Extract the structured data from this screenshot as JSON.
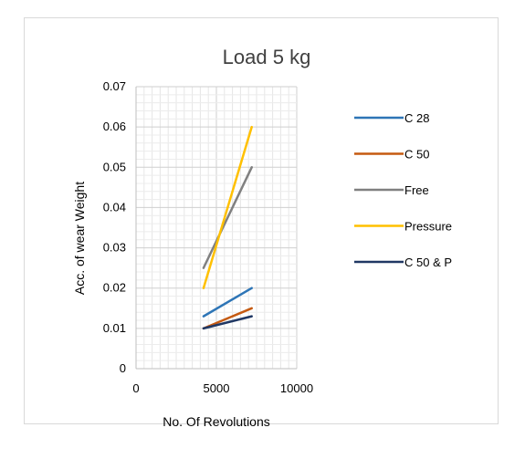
{
  "chart_data": {
    "type": "line",
    "title": "Load 5 kg",
    "xlabel": "No. Of Revolutions",
    "ylabel": "Acc. of  wear Weight",
    "xlim": [
      0,
      10000
    ],
    "ylim": [
      0,
      0.07
    ],
    "xticks": [
      0,
      5000,
      10000
    ],
    "xtick_labels": [
      "0",
      "5000",
      "10000"
    ],
    "yticks": [
      0,
      0.01,
      0.02,
      0.03,
      0.04,
      0.05,
      0.06,
      0.07
    ],
    "ytick_labels": [
      "0",
      "0.01",
      "0.02",
      "0.03",
      "0.04",
      "0.05",
      "0.06",
      "0.07"
    ],
    "grid": true,
    "legend_position": "right",
    "series": [
      {
        "name": "C 28",
        "color": "#2e75b6",
        "x": [
          4200,
          7200
        ],
        "y": [
          0.013,
          0.02
        ]
      },
      {
        "name": "C 50",
        "color": "#c55a11",
        "x": [
          4200,
          7200
        ],
        "y": [
          0.01,
          0.015
        ]
      },
      {
        "name": "Free",
        "color": "#808080",
        "x": [
          4200,
          7200
        ],
        "y": [
          0.025,
          0.05
        ]
      },
      {
        "name": "Pressure",
        "color": "#ffc000",
        "x": [
          4200,
          7200
        ],
        "y": [
          0.02,
          0.06
        ]
      },
      {
        "name": "C 50 & P",
        "color": "#203864",
        "x": [
          4200,
          7200
        ],
        "y": [
          0.01,
          0.013
        ]
      }
    ]
  }
}
